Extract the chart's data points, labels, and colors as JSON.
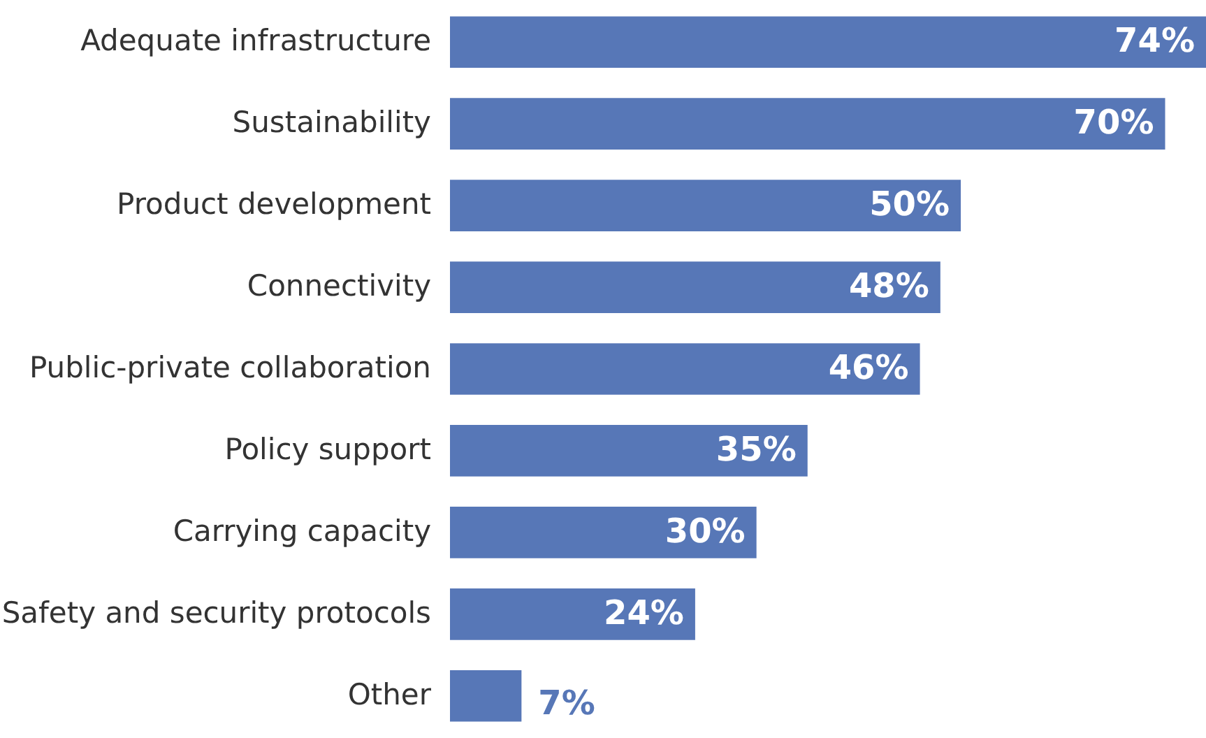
{
  "chart_data": {
    "type": "bar",
    "orientation": "horizontal",
    "value_labels": [
      "74%",
      "70%",
      "50%",
      "48%",
      "46%",
      "35%",
      "30%",
      "24%",
      "7%"
    ],
    "categories": [
      "Adequate infrastructure",
      "Sustainability",
      "Product development",
      "Connectivity",
      "Public-private collaboration",
      "Policy support",
      "Carrying capacity",
      "Safety and security protocols",
      "Other"
    ],
    "values": [
      74,
      70,
      50,
      48,
      46,
      35,
      30,
      24,
      7
    ],
    "color": "#5777b7"
  }
}
